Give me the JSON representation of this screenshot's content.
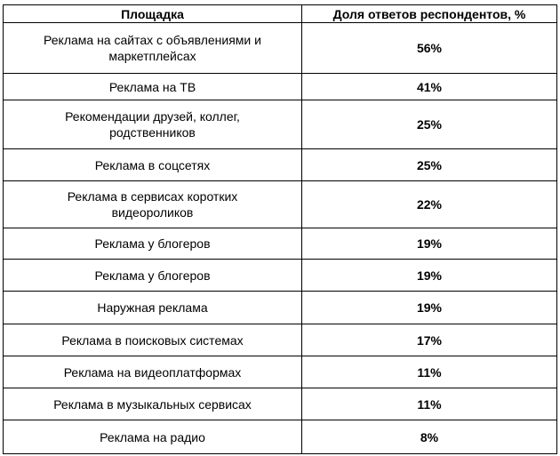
{
  "table": {
    "header": [
      "Площадка",
      "Доля ответов респондентов, %"
    ],
    "rows": [
      [
        "Реклама на сайтах с объявлениями и маркетплейсах",
        "56%"
      ],
      [
        "Реклама на ТВ",
        "41%"
      ],
      [
        "Рекомендации друзей, коллег, родственников",
        "25%"
      ],
      [
        "Реклама в соцсетях",
        "25%"
      ],
      [
        "Реклама в сервисах коротких видеороликов",
        "22%"
      ],
      [
        "Реклама у блогеров",
        "19%"
      ],
      [
        "Реклама у блогеров",
        "19%"
      ],
      [
        "Наружная реклама",
        "19%"
      ],
      [
        "Реклама в поисковых системах",
        "17%"
      ],
      [
        "Реклама на видеоплатформах",
        "11%"
      ],
      [
        "Реклама в музыкальных сервисах",
        "11%"
      ],
      [
        "Реклама на радио",
        "8%"
      ]
    ]
  }
}
